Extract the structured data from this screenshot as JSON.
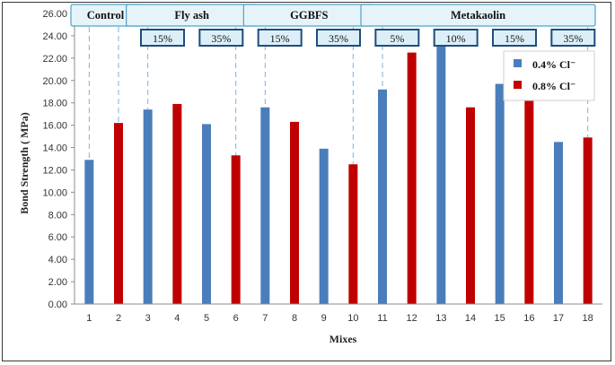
{
  "chart_data": {
    "type": "bar",
    "title": "",
    "xlabel": "Mixes",
    "ylabel": "Bond Strength ( MPa)",
    "ylim": [
      0,
      26
    ],
    "ytick_step": 2,
    "ytick_decimals": 2,
    "grid": false,
    "legend_position": "top-right",
    "categories": [
      "1",
      "2",
      "3",
      "4",
      "5",
      "6",
      "7",
      "8",
      "9",
      "10",
      "11",
      "12",
      "13",
      "14",
      "15",
      "16",
      "17",
      "18"
    ],
    "series": [
      {
        "name": "0.4% Cl⁻",
        "color": "#4a7ebb",
        "bars": [
          {
            "x": "1",
            "value": 12.9
          },
          {
            "x": "3",
            "value": 17.4
          },
          {
            "x": "5",
            "value": 16.1
          },
          {
            "x": "7",
            "value": 17.6
          },
          {
            "x": "9",
            "value": 13.9
          },
          {
            "x": "11",
            "value": 19.2
          },
          {
            "x": "13",
            "value": 23.6
          },
          {
            "x": "15",
            "value": 19.7
          },
          {
            "x": "17",
            "value": 14.5
          }
        ]
      },
      {
        "name": "0.8% Cl⁻",
        "color": "#c00000",
        "bars": [
          {
            "x": "2",
            "value": 16.2
          },
          {
            "x": "4",
            "value": 17.9
          },
          {
            "x": "6",
            "value": 13.3
          },
          {
            "x": "8",
            "value": 16.3
          },
          {
            "x": "10",
            "value": 12.5
          },
          {
            "x": "12",
            "value": 22.5
          },
          {
            "x": "14",
            "value": 17.6
          },
          {
            "x": "16",
            "value": 18.9
          },
          {
            "x": "18",
            "value": 14.9
          }
        ]
      }
    ],
    "groups": [
      {
        "label": "Control",
        "first": 1,
        "last": 2
      },
      {
        "label": "Fly ash",
        "first": 3,
        "last": 6
      },
      {
        "label": "GGBFS",
        "first": 7,
        "last": 10
      },
      {
        "label": "Metakaolin",
        "first": 11,
        "last": 18
      }
    ],
    "subgroups": [
      {
        "label": "15%",
        "first": 3,
        "last": 4
      },
      {
        "label": "35%",
        "first": 5,
        "last": 6
      },
      {
        "label": "15%",
        "first": 7,
        "last": 8
      },
      {
        "label": "35%",
        "first": 9,
        "last": 10
      },
      {
        "label": "5%",
        "first": 11,
        "last": 12
      },
      {
        "label": "10%",
        "first": 13,
        "last": 14
      },
      {
        "label": "15%",
        "first": 15,
        "last": 16
      },
      {
        "label": "35%",
        "first": 17,
        "last": 18
      }
    ],
    "colors": {
      "group_box_fill": "#e6f4fa",
      "group_box_border": "#4fa3c7",
      "subgroup_box_fill": "#dceef7",
      "subgroup_box_border": "#1f4e79",
      "divider": "#7fb3dc"
    }
  }
}
